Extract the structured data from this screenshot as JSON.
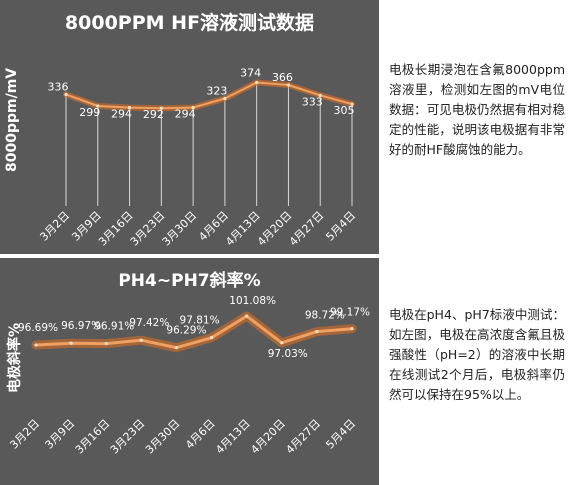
{
  "charts": [
    {
      "title": "8000PPM HF溶液测试数据",
      "ylabel": "8000ppm/mV"
    },
    {
      "title": "PH4~PH7斜率%",
      "ylabel": "电极斜率%"
    }
  ],
  "descriptions": [
    "电极长期浸泡在含氟8000ppm溶液里，检测如左图的mV电位数据：可见电极仍然据有相对稳定的性能，说明该电极据有非常好的耐HF酸腐蚀的能力。",
    "电极在pH4、pH7标液中测试：如左图，电极在高浓度含氟且极强酸性（pH=2）的溶液中长期在线测试2个月后，电极斜率仍然可以保持在95%以上。"
  ],
  "colors": {
    "panel_bg": "#595959",
    "line": "#f0a060",
    "glow": "#e07020",
    "text": "#ffffff"
  },
  "chart_data": [
    {
      "type": "line",
      "title": "8000PPM HF溶液测试数据",
      "xlabel": "",
      "ylabel": "8000ppm/mV",
      "categories": [
        "3月2日",
        "3月9日",
        "3月16日",
        "3月23日",
        "3月30日",
        "4月6日",
        "4月13日",
        "4月20日",
        "4月27日",
        "5月4日"
      ],
      "values": [
        336,
        299,
        294,
        292,
        294,
        323,
        374,
        366,
        333,
        305
      ],
      "data_labels": [
        "336",
        "299",
        "294",
        "292",
        "294",
        "323",
        "374",
        "366",
        "333",
        "305"
      ],
      "ylim": [
        0,
        420
      ],
      "grid": false,
      "style": "drop-lines"
    },
    {
      "type": "line",
      "title": "PH4~PH7斜率%",
      "xlabel": "",
      "ylabel": "电极斜率%",
      "categories": [
        "3月2日",
        "3月9日",
        "3月16日",
        "3月23日",
        "3月30日",
        "4月6日",
        "4月13日",
        "4月20日",
        "4月27日",
        "5月4日"
      ],
      "values": [
        96.69,
        96.97,
        96.91,
        97.42,
        96.29,
        97.81,
        101.08,
        97.03,
        98.72,
        99.17
      ],
      "data_labels": [
        "96.69%",
        "96.97%",
        "96.91%",
        "97.42%",
        "96.29%",
        "97.81%",
        "101.08%",
        "97.03%",
        "98.72%",
        "99.17%"
      ],
      "ylim": [
        92,
        102
      ],
      "grid": false
    }
  ]
}
